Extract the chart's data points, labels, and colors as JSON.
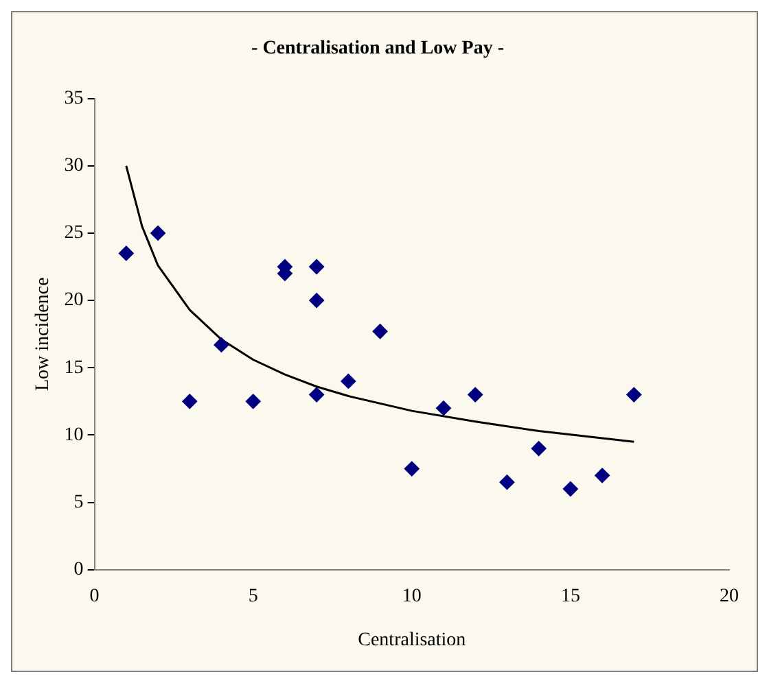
{
  "chart_data": {
    "type": "scatter",
    "title": "- Centralisation and Low Pay -",
    "xlabel": "Centralisation",
    "ylabel": "Low incidence",
    "xlim": [
      0,
      20
    ],
    "xticks": [
      0,
      5,
      10,
      15,
      20
    ],
    "ylim": [
      0,
      35
    ],
    "yticks": [
      0,
      5,
      10,
      15,
      20,
      25,
      30,
      35
    ],
    "grid": false,
    "legend": false,
    "marker": "diamond",
    "series": [
      {
        "type": "scatter",
        "color": "#000080",
        "x": [
          1,
          2,
          3,
          4,
          5,
          6,
          6,
          7,
          7,
          7,
          8,
          9,
          10,
          11,
          12,
          13,
          14,
          15,
          16,
          17
        ],
        "values": [
          23.5,
          25,
          12.5,
          16.7,
          12.5,
          22.5,
          22,
          22.5,
          20,
          13,
          14,
          17.7,
          7.5,
          12,
          13,
          6.5,
          9,
          6,
          7,
          13
        ]
      },
      {
        "type": "line",
        "color": "#000000",
        "marker": "none",
        "x": [
          1,
          1.5,
          2,
          3,
          4,
          5,
          6,
          7,
          8,
          10,
          12,
          14,
          17
        ],
        "values": [
          30,
          25.5,
          22.6,
          19.3,
          17.1,
          15.6,
          14.5,
          13.6,
          12.9,
          11.8,
          11,
          10.3,
          9.5
        ]
      }
    ]
  }
}
